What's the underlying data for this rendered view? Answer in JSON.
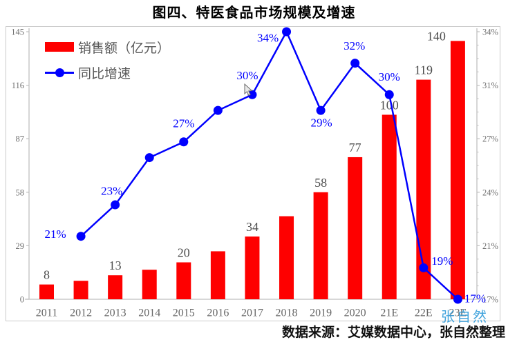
{
  "title": "图四、特医食品市场规模及增速",
  "legend": [
    {
      "label": "销售额（亿元）",
      "type": "bar"
    },
    {
      "label": "同比增速",
      "type": "line"
    }
  ],
  "watermark": "张自然",
  "footer": "数据来源：艾媒数据中心，张自然整理",
  "colors": {
    "bar": "#fe0000",
    "line": "#0000fe",
    "axis_line": "#bfbfbf",
    "axis_text": "#707070",
    "x_label_text": "#666666",
    "bar_label_text": "#4d4d4d",
    "watermark": "#2e9bda"
  },
  "chart_data": {
    "type": "bar+line combo",
    "categories": [
      "2011",
      "2012",
      "2013",
      "2014",
      "2015",
      "2016",
      "2017",
      "2018",
      "2019",
      "2020",
      "21E",
      "22E",
      "23E"
    ],
    "series": [
      {
        "name": "销售额（亿元）",
        "type": "bar",
        "axis": "left",
        "values": [
          8,
          10,
          13,
          16,
          20,
          26,
          34,
          45,
          58,
          77,
          100,
          119,
          140
        ],
        "data_labels": [
          "8",
          null,
          "13",
          null,
          "20",
          null,
          "34",
          null,
          "58",
          "77",
          "100",
          "119",
          "140"
        ]
      },
      {
        "name": "同比增速",
        "type": "line",
        "axis": "right",
        "start_index": 1,
        "values": [
          21,
          23,
          26,
          27,
          29,
          30,
          34,
          29,
          32,
          30,
          19,
          17
        ],
        "data_labels": [
          "21%",
          "23%",
          null,
          "27%",
          null,
          "30%",
          "34%",
          "29%",
          "32%",
          "30%",
          "19%",
          "17%"
        ]
      }
    ],
    "left_axis": {
      "tick_labels": [
        "0",
        "29",
        "58",
        "87",
        "116",
        "145"
      ],
      "min": 0,
      "max": 145
    },
    "right_axis": {
      "tick_labels": [
        "17%",
        "21%",
        "24%",
        "27%",
        "31%",
        "34%"
      ],
      "min": 17,
      "max": 34,
      "minor_ticks_per_interval": 3
    },
    "grid": "off",
    "legend_position": "top-left inside plot"
  }
}
